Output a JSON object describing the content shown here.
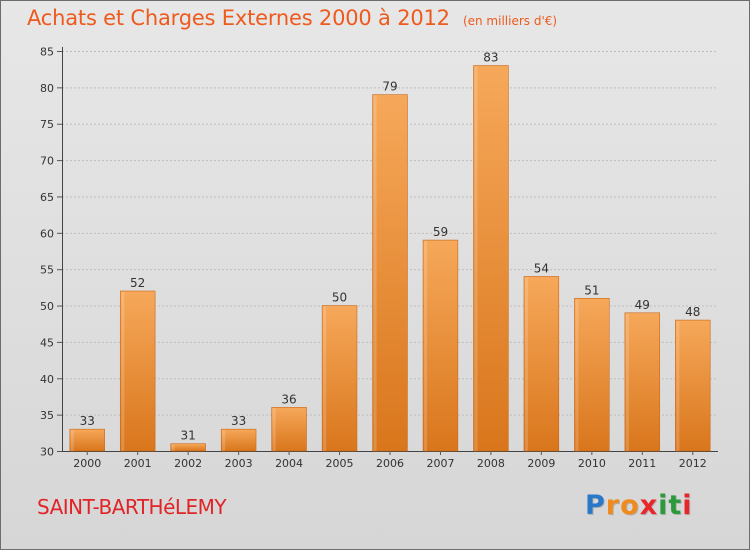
{
  "title": {
    "main": "Achats et Charges Externes 2000 à 2012",
    "unit": "(en milliers d'€)"
  },
  "location": "SAINT-BARTHéLEMY",
  "brand": {
    "letters": [
      "P",
      "r",
      "o",
      "x",
      "i",
      "t",
      "i"
    ],
    "colors": [
      "#2a78c8",
      "#f08a1c",
      "#f08a1c",
      "#e8262a",
      "#2a9a3c",
      "#2a9a3c",
      "#e8262a"
    ]
  },
  "colors": {
    "title": "#ee5a1d",
    "location": "#e12427",
    "bar_light": "#f6a85a",
    "bar_dark": "#d9761c"
  },
  "chart_data": {
    "type": "bar",
    "categories": [
      "2000",
      "2001",
      "2002",
      "2003",
      "2004",
      "2005",
      "2006",
      "2007",
      "2008",
      "2009",
      "2010",
      "2011",
      "2012"
    ],
    "values": [
      33,
      52,
      31,
      33,
      36,
      50,
      79,
      59,
      83,
      54,
      51,
      49,
      48
    ],
    "title": "Achats et Charges Externes 2000 à 2012",
    "unit": "(en milliers d'€)",
    "ylim": [
      30,
      85
    ],
    "yticks": [
      30,
      35,
      40,
      45,
      50,
      55,
      60,
      65,
      70,
      75,
      80,
      85
    ],
    "grid": true
  }
}
